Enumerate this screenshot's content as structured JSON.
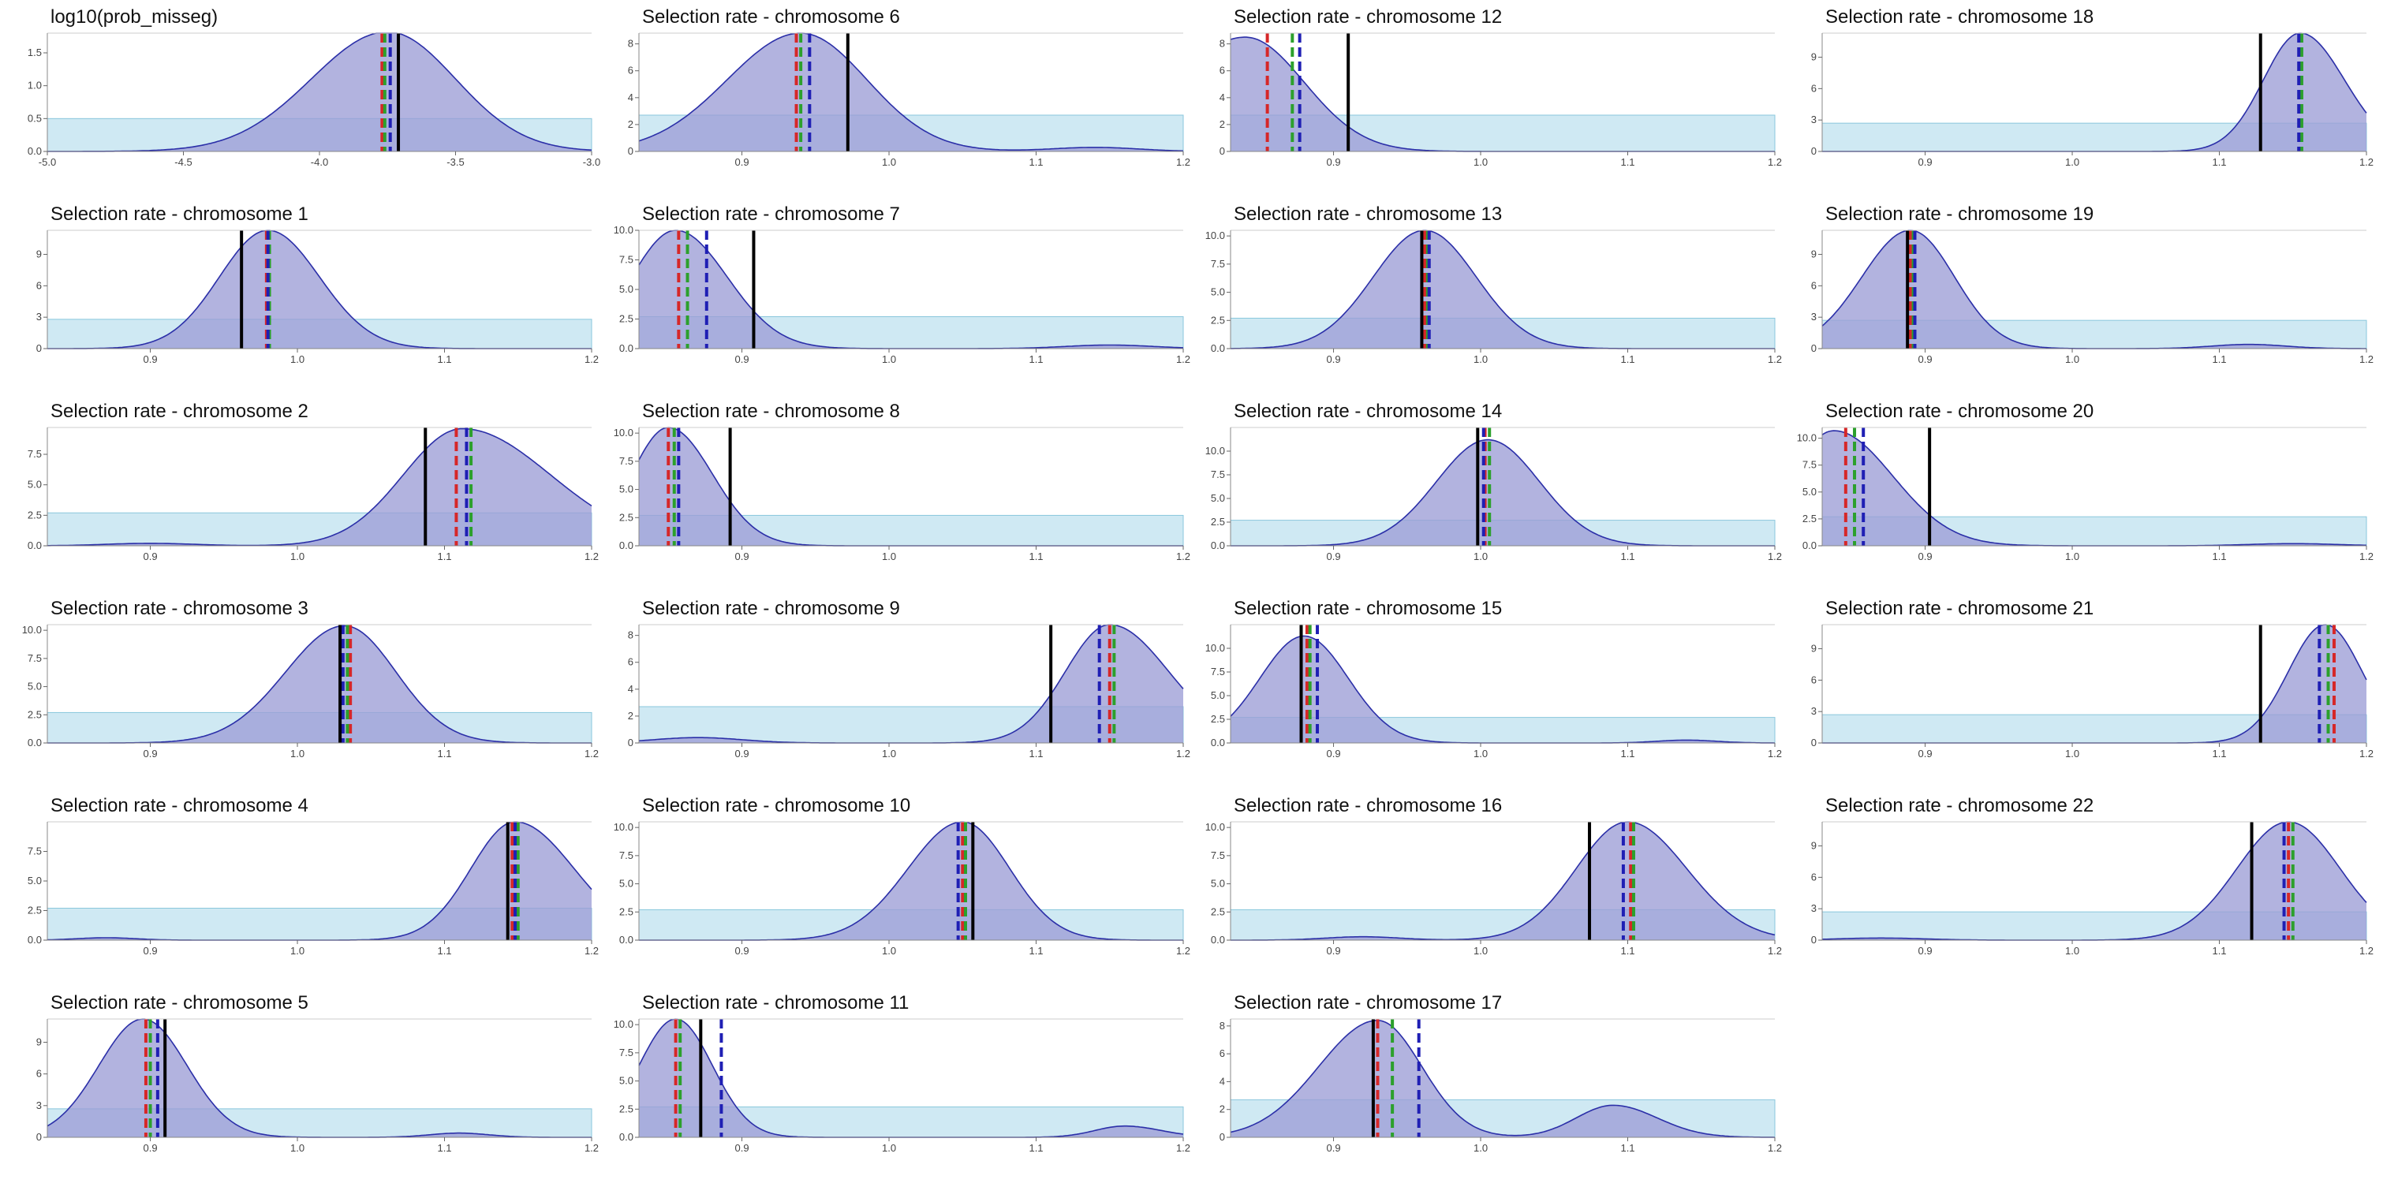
{
  "colors": {
    "density_fill": "#9c9ed6",
    "density_line": "#2b2fa8",
    "prior_fill": "#cfe9f3",
    "prior_line": "#8ac7dc",
    "line_red": "#d62728",
    "line_green": "#2ca02c",
    "line_blue": "#1f1fb4",
    "line_black": "#000000"
  },
  "chart_data": [
    {
      "type": "area",
      "title": "log10(prob_misseg)",
      "xlim": [
        -5.0,
        -3.0
      ],
      "xticks": [
        "-5.0",
        "-4.5",
        "-4.0",
        "-3.5",
        "-3.0"
      ],
      "ylim": [
        0,
        1.8
      ],
      "yticks": [
        "0.0",
        "0.5",
        "1.0",
        "1.5"
      ],
      "prior": 0.5,
      "peaks": [
        {
          "mu": -3.75,
          "sl": 0.28,
          "sr": 0.25,
          "h": 1.82
        }
      ],
      "vlines": {
        "red": -3.77,
        "green": -3.76,
        "blue": -3.74,
        "black": -3.71
      },
      "grid_pos": [
        0,
        0
      ]
    },
    {
      "type": "area",
      "title": "Selection rate - chromosome 1",
      "xlim": [
        0.83,
        1.2
      ],
      "xticks": [
        "0.9",
        "1.0",
        "1.1",
        "1.2"
      ],
      "ylim": [
        0,
        11.3
      ],
      "yticks": [
        "0",
        "3",
        "6",
        "9"
      ],
      "prior": 2.8,
      "peaks": [
        {
          "mu": 0.98,
          "sl": 0.033,
          "sr": 0.035,
          "h": 11.3
        }
      ],
      "vlines": {
        "red": 0.979,
        "green": 0.981,
        "blue": 0.98,
        "black": 0.962
      },
      "grid_pos": [
        0,
        1
      ]
    },
    {
      "type": "area",
      "title": "Selection rate - chromosome 2",
      "xlim": [
        0.83,
        1.2
      ],
      "xticks": [
        "0.9",
        "1.0",
        "1.1",
        "1.2"
      ],
      "ylim": [
        0,
        9.7
      ],
      "yticks": [
        "0.0",
        "2.5",
        "5.0",
        "7.5"
      ],
      "prior": 2.7,
      "peaks": [
        {
          "mu": 1.112,
          "sl": 0.04,
          "sr": 0.06,
          "h": 9.6
        },
        {
          "mu": 0.9,
          "sl": 0.03,
          "sr": 0.03,
          "h": 0.2
        }
      ],
      "vlines": {
        "red": 1.108,
        "green": 1.118,
        "blue": 1.115,
        "black": 1.087
      },
      "grid_pos": [
        0,
        2
      ]
    },
    {
      "type": "area",
      "title": "Selection rate - chromosome 3",
      "xlim": [
        0.83,
        1.2
      ],
      "xticks": [
        "0.9",
        "1.0",
        "1.1",
        "1.2"
      ],
      "ylim": [
        0,
        10.5
      ],
      "yticks": [
        "0.0",
        "2.5",
        "5.0",
        "7.5",
        "10.0"
      ],
      "prior": 2.7,
      "peaks": [
        {
          "mu": 1.032,
          "sl": 0.04,
          "sr": 0.035,
          "h": 10.4
        }
      ],
      "vlines": {
        "red": 1.036,
        "green": 1.034,
        "blue": 1.031,
        "black": 1.029
      },
      "grid_pos": [
        0,
        3
      ]
    },
    {
      "type": "area",
      "title": "Selection rate - chromosome 4",
      "xlim": [
        0.83,
        1.2
      ],
      "xticks": [
        "0.9",
        "1.0",
        "1.1",
        "1.2"
      ],
      "ylim": [
        0,
        10.0
      ],
      "yticks": [
        "0.0",
        "2.5",
        "5.0",
        "7.5"
      ],
      "prior": 2.7,
      "peaks": [
        {
          "mu": 1.148,
          "sl": 0.03,
          "sr": 0.04,
          "h": 10.0
        },
        {
          "mu": 0.87,
          "sl": 0.02,
          "sr": 0.02,
          "h": 0.2
        }
      ],
      "vlines": {
        "red": 1.146,
        "green": 1.15,
        "blue": 1.148,
        "black": 1.143
      },
      "grid_pos": [
        0,
        4
      ]
    },
    {
      "type": "area",
      "title": "Selection rate - chromosome 5",
      "xlim": [
        0.83,
        1.2
      ],
      "xticks": [
        "0.9",
        "1.0",
        "1.1",
        "1.2"
      ],
      "ylim": [
        0,
        11.2
      ],
      "yticks": [
        "0",
        "3",
        "6",
        "9"
      ],
      "prior": 2.7,
      "peaks": [
        {
          "mu": 0.895,
          "sl": 0.03,
          "sr": 0.03,
          "h": 11.2
        },
        {
          "mu": 1.11,
          "sl": 0.02,
          "sr": 0.02,
          "h": 0.4
        }
      ],
      "vlines": {
        "red": 0.897,
        "green": 0.9,
        "blue": 0.905,
        "black": 0.91
      },
      "grid_pos": [
        0,
        5
      ]
    },
    {
      "type": "area",
      "title": "Selection rate - chromosome 6",
      "xlim": [
        0.83,
        1.2
      ],
      "xticks": [
        "0.9",
        "1.0",
        "1.1",
        "1.2"
      ],
      "ylim": [
        0,
        8.8
      ],
      "yticks": [
        "0",
        "2",
        "4",
        "6",
        "8"
      ],
      "prior": 2.7,
      "peaks": [
        {
          "mu": 0.94,
          "sl": 0.05,
          "sr": 0.045,
          "h": 8.8
        },
        {
          "mu": 1.14,
          "sl": 0.03,
          "sr": 0.03,
          "h": 0.3
        }
      ],
      "vlines": {
        "red": 0.937,
        "green": 0.94,
        "blue": 0.946,
        "black": 0.972
      },
      "grid_pos": [
        1,
        0
      ]
    },
    {
      "type": "area",
      "title": "Selection rate - chromosome 7",
      "xlim": [
        0.83,
        1.2
      ],
      "xticks": [
        "0.9",
        "1.0",
        "1.1",
        "1.2"
      ],
      "ylim": [
        0,
        10.0
      ],
      "yticks": [
        "0.0",
        "2.5",
        "5.0",
        "7.5",
        "10.0"
      ],
      "prior": 2.7,
      "peaks": [
        {
          "mu": 0.855,
          "sl": 0.03,
          "sr": 0.035,
          "h": 10.0
        },
        {
          "mu": 1.15,
          "sl": 0.03,
          "sr": 0.03,
          "h": 0.3
        }
      ],
      "vlines": {
        "red": 0.857,
        "green": 0.863,
        "blue": 0.876,
        "black": 0.908
      },
      "grid_pos": [
        1,
        1
      ]
    },
    {
      "type": "area",
      "title": "Selection rate - chromosome 8",
      "xlim": [
        0.83,
        1.2
      ],
      "xticks": [
        "0.9",
        "1.0",
        "1.1",
        "1.2"
      ],
      "ylim": [
        0,
        10.5
      ],
      "yticks": [
        "0.0",
        "2.5",
        "5.0",
        "7.5",
        "10.0"
      ],
      "prior": 2.7,
      "peaks": [
        {
          "mu": 0.85,
          "sl": 0.025,
          "sr": 0.03,
          "h": 10.5
        }
      ],
      "vlines": {
        "red": 0.85,
        "green": 0.854,
        "blue": 0.857,
        "black": 0.892
      },
      "grid_pos": [
        1,
        2
      ]
    },
    {
      "type": "area",
      "title": "Selection rate - chromosome 9",
      "xlim": [
        0.83,
        1.2
      ],
      "xticks": [
        "0.9",
        "1.0",
        "1.1",
        "1.2"
      ],
      "ylim": [
        0,
        8.8
      ],
      "yticks": [
        "0",
        "2",
        "4",
        "6",
        "8"
      ],
      "prior": 2.7,
      "peaks": [
        {
          "mu": 1.15,
          "sl": 0.03,
          "sr": 0.04,
          "h": 8.8
        },
        {
          "mu": 0.87,
          "sl": 0.03,
          "sr": 0.03,
          "h": 0.4
        }
      ],
      "vlines": {
        "red": 1.15,
        "green": 1.153,
        "blue": 1.143,
        "black": 1.11
      },
      "grid_pos": [
        1,
        3
      ]
    },
    {
      "type": "area",
      "title": "Selection rate - chromosome 10",
      "xlim": [
        0.83,
        1.2
      ],
      "xticks": [
        "0.9",
        "1.0",
        "1.1",
        "1.2"
      ],
      "ylim": [
        0,
        10.5
      ],
      "yticks": [
        "0.0",
        "2.5",
        "5.0",
        "7.5",
        "10.0"
      ],
      "prior": 2.7,
      "peaks": [
        {
          "mu": 1.05,
          "sl": 0.037,
          "sr": 0.032,
          "h": 10.5
        }
      ],
      "vlines": {
        "red": 1.05,
        "green": 1.052,
        "blue": 1.047,
        "black": 1.057
      },
      "grid_pos": [
        1,
        4
      ]
    },
    {
      "type": "area",
      "title": "Selection rate - chromosome 11",
      "xlim": [
        0.83,
        1.2
      ],
      "xticks": [
        "0.9",
        "1.0",
        "1.1",
        "1.2"
      ],
      "ylim": [
        0,
        10.5
      ],
      "yticks": [
        "0.0",
        "2.5",
        "5.0",
        "7.5",
        "10.0"
      ],
      "prior": 2.7,
      "peaks": [
        {
          "mu": 0.855,
          "sl": 0.025,
          "sr": 0.025,
          "h": 10.5
        },
        {
          "mu": 1.16,
          "sl": 0.02,
          "sr": 0.025,
          "h": 1.0
        }
      ],
      "vlines": {
        "red": 0.855,
        "green": 0.858,
        "blue": 0.886,
        "black": 0.872
      },
      "grid_pos": [
        1,
        5
      ]
    },
    {
      "type": "area",
      "title": "Selection rate - chromosome 12",
      "xlim": [
        0.83,
        1.2
      ],
      "xticks": [
        "0.9",
        "1.0",
        "1.1",
        "1.2"
      ],
      "ylim": [
        0,
        8.8
      ],
      "yticks": [
        "0",
        "2",
        "4",
        "6",
        "8"
      ],
      "prior": 2.7,
      "peaks": [
        {
          "mu": 0.84,
          "sl": 0.05,
          "sr": 0.04,
          "h": 8.5
        }
      ],
      "vlines": {
        "red": 0.855,
        "green": 0.872,
        "blue": 0.877,
        "black": 0.91
      },
      "grid_pos": [
        2,
        0
      ]
    },
    {
      "type": "area",
      "title": "Selection rate - chromosome 13",
      "xlim": [
        0.83,
        1.2
      ],
      "xticks": [
        "0.9",
        "1.0",
        "1.1",
        "1.2"
      ],
      "ylim": [
        0,
        10.5
      ],
      "yticks": [
        "0.0",
        "2.5",
        "5.0",
        "7.5",
        "10.0"
      ],
      "prior": 2.7,
      "peaks": [
        {
          "mu": 0.962,
          "sl": 0.035,
          "sr": 0.035,
          "h": 10.5
        }
      ],
      "vlines": {
        "red": 0.962,
        "green": 0.964,
        "blue": 0.965,
        "black": 0.96
      },
      "grid_pos": [
        2,
        1
      ]
    },
    {
      "type": "area",
      "title": "Selection rate - chromosome 14",
      "xlim": [
        0.83,
        1.2
      ],
      "xticks": [
        "0.9",
        "1.0",
        "1.1",
        "1.2"
      ],
      "ylim": [
        0,
        12.5
      ],
      "yticks": [
        "0.0",
        "2.5",
        "5.0",
        "7.5",
        "10.0"
      ],
      "prior": 2.7,
      "peaks": [
        {
          "mu": 1.005,
          "sl": 0.035,
          "sr": 0.035,
          "h": 11.2
        }
      ],
      "vlines": {
        "red": 1.003,
        "green": 1.006,
        "blue": 1.002,
        "black": 0.998
      },
      "grid_pos": [
        2,
        2
      ]
    },
    {
      "type": "area",
      "title": "Selection rate - chromosome 15",
      "xlim": [
        0.83,
        1.2
      ],
      "xticks": [
        "0.9",
        "1.0",
        "1.1",
        "1.2"
      ],
      "ylim": [
        0,
        12.5
      ],
      "yticks": [
        "0.0",
        "2.5",
        "5.0",
        "7.5",
        "10.0"
      ],
      "prior": 2.7,
      "peaks": [
        {
          "mu": 0.88,
          "sl": 0.03,
          "sr": 0.03,
          "h": 11.3
        },
        {
          "mu": 1.14,
          "sl": 0.02,
          "sr": 0.02,
          "h": 0.3
        }
      ],
      "vlines": {
        "red": 0.882,
        "green": 0.884,
        "blue": 0.889,
        "black": 0.878
      },
      "grid_pos": [
        2,
        3
      ]
    },
    {
      "type": "area",
      "title": "Selection rate - chromosome 16",
      "xlim": [
        0.83,
        1.2
      ],
      "xticks": [
        "0.9",
        "1.0",
        "1.1",
        "1.2"
      ],
      "ylim": [
        0,
        10.5
      ],
      "yticks": [
        "0.0",
        "2.5",
        "5.0",
        "7.5",
        "10.0"
      ],
      "prior": 2.7,
      "peaks": [
        {
          "mu": 1.1,
          "sl": 0.035,
          "sr": 0.04,
          "h": 10.5
        },
        {
          "mu": 0.92,
          "sl": 0.025,
          "sr": 0.025,
          "h": 0.3
        }
      ],
      "vlines": {
        "red": 1.102,
        "green": 1.104,
        "blue": 1.097,
        "black": 1.074
      },
      "grid_pos": [
        2,
        4
      ]
    },
    {
      "type": "area",
      "title": "Selection rate - chromosome 17",
      "xlim": [
        0.83,
        1.2
      ],
      "xticks": [
        "0.9",
        "1.0",
        "1.1",
        "1.2"
      ],
      "ylim": [
        0,
        8.5
      ],
      "yticks": [
        "0",
        "2",
        "4",
        "6",
        "8"
      ],
      "prior": 2.7,
      "peaks": [
        {
          "mu": 0.93,
          "sl": 0.04,
          "sr": 0.03,
          "h": 8.4
        },
        {
          "mu": 1.09,
          "sl": 0.025,
          "sr": 0.03,
          "h": 2.3
        }
      ],
      "vlines": {
        "red": 0.93,
        "green": 0.94,
        "blue": 0.958,
        "black": 0.927
      },
      "grid_pos": [
        2,
        5
      ]
    },
    {
      "type": "area",
      "title": "Selection rate - chromosome 18",
      "xlim": [
        0.83,
        1.2
      ],
      "xticks": [
        "0.9",
        "1.0",
        "1.1",
        "1.2"
      ],
      "ylim": [
        0,
        11.3
      ],
      "yticks": [
        "0",
        "3",
        "6",
        "9"
      ],
      "prior": 2.7,
      "peaks": [
        {
          "mu": 1.155,
          "sl": 0.025,
          "sr": 0.03,
          "h": 11.3
        }
      ],
      "vlines": {
        "red": 1.155,
        "green": 1.156,
        "blue": 1.154,
        "black": 1.128
      },
      "grid_pos": [
        3,
        0
      ]
    },
    {
      "type": "area",
      "title": "Selection rate - chromosome 19",
      "xlim": [
        0.83,
        1.2
      ],
      "xticks": [
        "0.9",
        "1.0",
        "1.1",
        "1.2"
      ],
      "ylim": [
        0,
        11.3
      ],
      "yticks": [
        "0",
        "3",
        "6",
        "9"
      ],
      "prior": 2.7,
      "peaks": [
        {
          "mu": 0.89,
          "sl": 0.033,
          "sr": 0.03,
          "h": 11.3
        },
        {
          "mu": 1.12,
          "sl": 0.025,
          "sr": 0.025,
          "h": 0.4
        }
      ],
      "vlines": {
        "red": 0.89,
        "green": 0.892,
        "blue": 0.893,
        "black": 0.888
      },
      "grid_pos": [
        3,
        1
      ]
    },
    {
      "type": "area",
      "title": "Selection rate - chromosome 20",
      "xlim": [
        0.83,
        1.2
      ],
      "xticks": [
        "0.9",
        "1.0",
        "1.1",
        "1.2"
      ],
      "ylim": [
        0,
        11.0
      ],
      "yticks": [
        "0.0",
        "2.5",
        "5.0",
        "7.5",
        "10.0"
      ],
      "prior": 2.7,
      "peaks": [
        {
          "mu": 0.838,
          "sl": 0.03,
          "sr": 0.04,
          "h": 10.7
        },
        {
          "mu": 1.15,
          "sl": 0.03,
          "sr": 0.03,
          "h": 0.2
        }
      ],
      "vlines": {
        "red": 0.846,
        "green": 0.852,
        "blue": 0.858,
        "black": 0.903
      },
      "grid_pos": [
        3,
        2
      ]
    },
    {
      "type": "area",
      "title": "Selection rate - chromosome 21",
      "xlim": [
        0.83,
        1.2
      ],
      "xticks": [
        "0.9",
        "1.0",
        "1.1",
        "1.2"
      ],
      "ylim": [
        0,
        11.3
      ],
      "yticks": [
        "0",
        "3",
        "6",
        "9"
      ],
      "prior": 2.7,
      "peaks": [
        {
          "mu": 1.172,
          "sl": 0.025,
          "sr": 0.025,
          "h": 11.3
        }
      ],
      "vlines": {
        "red": 1.178,
        "green": 1.174,
        "blue": 1.168,
        "black": 1.128
      },
      "grid_pos": [
        3,
        3
      ]
    },
    {
      "type": "area",
      "title": "Selection rate - chromosome 22",
      "xlim": [
        0.83,
        1.2
      ],
      "xticks": [
        "0.9",
        "1.0",
        "1.1",
        "1.2"
      ],
      "ylim": [
        0,
        11.3
      ],
      "yticks": [
        "0",
        "3",
        "6",
        "9"
      ],
      "prior": 2.7,
      "peaks": [
        {
          "mu": 1.147,
          "sl": 0.035,
          "sr": 0.035,
          "h": 11.3
        },
        {
          "mu": 0.87,
          "sl": 0.03,
          "sr": 0.03,
          "h": 0.2
        }
      ],
      "vlines": {
        "red": 1.147,
        "green": 1.15,
        "blue": 1.144,
        "black": 1.122
      },
      "grid_pos": [
        3,
        4
      ]
    }
  ]
}
